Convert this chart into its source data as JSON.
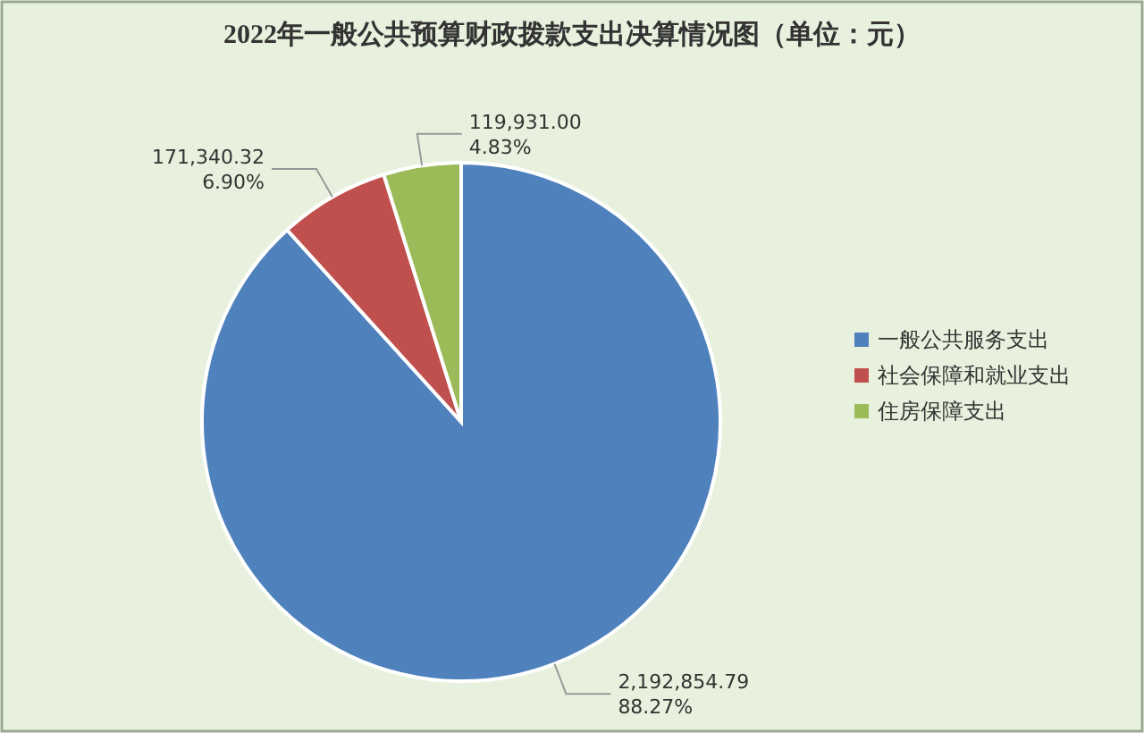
{
  "chart_data": {
    "type": "pie",
    "title": "2022年一般公共预算财政拨款支出决算情况图（单位：元）",
    "categories": [
      "一般公共服务支出",
      "社会保障和就业支出",
      "住房保障支出"
    ],
    "values": [
      2192854.79,
      171340.32,
      119931.0
    ],
    "colors": [
      "#4f81bd",
      "#c0504d",
      "#9bbb59"
    ],
    "value_labels": [
      "2,192,854.79\n88.27%",
      "171,340.32\n6.90%",
      "119,931.00\n4.83%"
    ],
    "legend": "right"
  }
}
